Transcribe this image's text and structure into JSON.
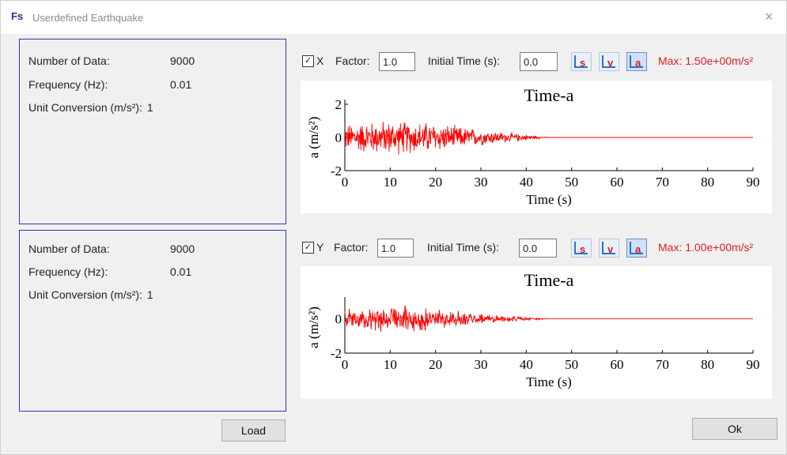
{
  "window": {
    "title": "Userdefined Earthquake",
    "app_logo": "Fs",
    "close_glyph": "×"
  },
  "panels": [
    {
      "info": {
        "rows": [
          {
            "label": "Number of Data:",
            "value": "9000"
          },
          {
            "label": "Frequency (Hz):",
            "value": "0.01"
          },
          {
            "label": "Unit Conversion (m/s²):",
            "value": "1"
          }
        ]
      },
      "controls": {
        "checkbox_label": "X",
        "checked": true,
        "factor_label": "Factor:",
        "factor_value": "1.0",
        "initial_time_label": "Initial Time (s):",
        "initial_time_value": "0.0",
        "tools": [
          {
            "icon": "chart-s-icon",
            "glyph": "S"
          },
          {
            "icon": "chart-v-icon",
            "glyph": "v"
          },
          {
            "icon": "chart-a-icon",
            "glyph": "a"
          }
        ],
        "max_label": "Max: 1.50e+00m/s²"
      }
    },
    {
      "info": {
        "rows": [
          {
            "label": "Number of Data:",
            "value": "9000"
          },
          {
            "label": "Frequency (Hz):",
            "value": "0.01"
          },
          {
            "label": "Unit Conversion (m/s²):",
            "value": "1"
          }
        ]
      },
      "controls": {
        "checkbox_label": "Y",
        "checked": true,
        "factor_label": "Factor:",
        "factor_value": "1.0",
        "initial_time_label": "Initial Time (s):",
        "initial_time_value": "0.0",
        "tools": [
          {
            "icon": "chart-s-icon",
            "glyph": "S"
          },
          {
            "icon": "chart-v-icon",
            "glyph": "v"
          },
          {
            "icon": "chart-a-icon",
            "glyph": "a"
          }
        ],
        "max_label": "Max: 1.00e+00m/s²"
      }
    }
  ],
  "buttons": {
    "load": "Load",
    "ok": "Ok"
  },
  "colors": {
    "signal": "#ff0000",
    "max_text": "#e02020",
    "panel_border": "#2b3aa8"
  },
  "chart_data": [
    {
      "type": "line",
      "title": "Time-a",
      "xlabel": "Time (s)",
      "ylabel": "a (m/s²)",
      "xlim": [
        0,
        90
      ],
      "ylim": [
        -2,
        2
      ],
      "xticks": [
        0,
        10,
        20,
        30,
        40,
        50,
        60,
        70,
        80,
        90
      ],
      "xtick_labels": [
        "0",
        "10",
        "20",
        "30",
        "40",
        "50",
        "60",
        "70",
        "80",
        "90"
      ],
      "yticks": [
        -2,
        0,
        2
      ],
      "ytick_labels": [
        "-2",
        "0",
        "2"
      ],
      "series": [
        {
          "envelope": [
            [
              0,
              0.9
            ],
            [
              5,
              1.1
            ],
            [
              10,
              1.15
            ],
            [
              15,
              1.1
            ],
            [
              20,
              1.0
            ],
            [
              25,
              0.75
            ],
            [
              30,
              0.55
            ],
            [
              35,
              0.35
            ],
            [
              40,
              0.2
            ],
            [
              43,
              0.08
            ],
            [
              45,
              0.0
            ],
            [
              90,
              0.0
            ]
          ]
        }
      ]
    },
    {
      "type": "line",
      "title": "Time-a",
      "xlabel": "Time (s)",
      "ylabel": "a (m/s²)",
      "xlim": [
        0,
        90
      ],
      "ylim": [
        -2,
        1
      ],
      "xticks": [
        0,
        10,
        20,
        30,
        40,
        50,
        60,
        70,
        80,
        90
      ],
      "xtick_labels": [
        "0",
        "10",
        "20",
        "30",
        "40",
        "50",
        "60",
        "70",
        "80",
        "90"
      ],
      "yticks": [
        -2,
        0
      ],
      "ytick_labels": [
        "-2",
        "0"
      ],
      "series": [
        {
          "envelope": [
            [
              0,
              0.6
            ],
            [
              5,
              0.8
            ],
            [
              10,
              0.85
            ],
            [
              15,
              0.8
            ],
            [
              20,
              0.7
            ],
            [
              25,
              0.5
            ],
            [
              30,
              0.35
            ],
            [
              35,
              0.22
            ],
            [
              40,
              0.12
            ],
            [
              43,
              0.05
            ],
            [
              45,
              0.0
            ],
            [
              90,
              0.0
            ]
          ]
        }
      ]
    }
  ]
}
